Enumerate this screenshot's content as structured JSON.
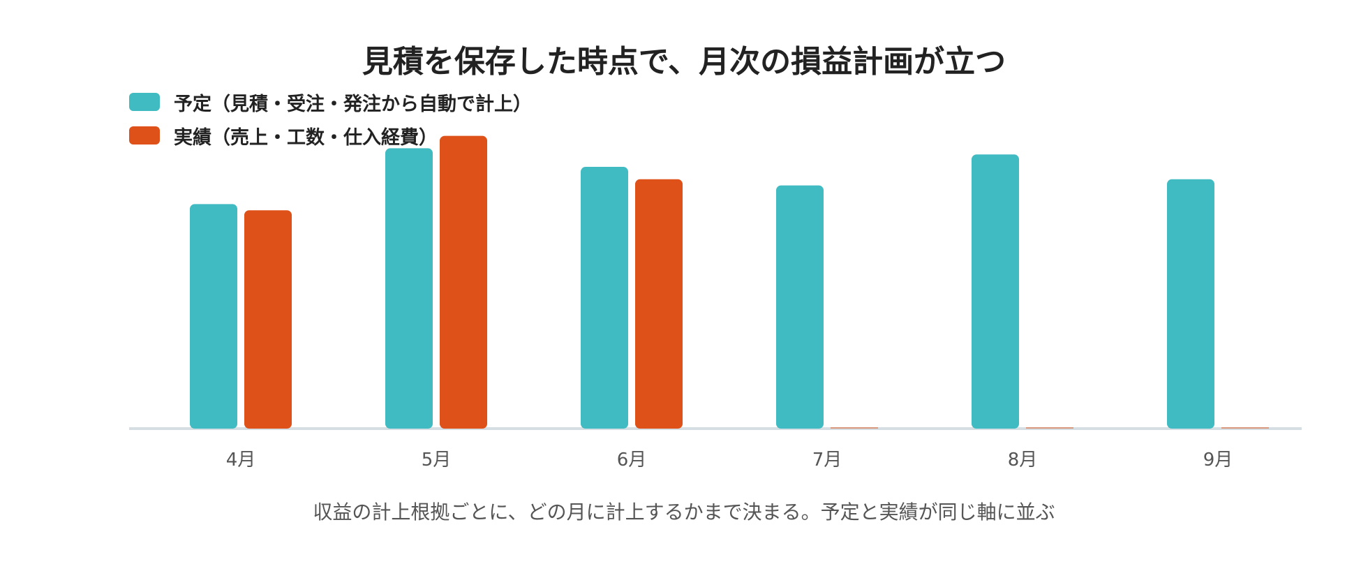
{
  "chart_data": {
    "type": "bar",
    "title": "見積を保存した時点で、月次の損益計画が立つ",
    "caption": "収益の計上根拠ごとに、どの月に計上するかまで決まる。予定と実績が同じ軸に並ぶ",
    "categories": [
      "4月",
      "5月",
      "6月",
      "7月",
      "8月",
      "9月"
    ],
    "series": [
      {
        "name": "予定（見積・受注・発注から自動で計上）",
        "color": "#40BBC1",
        "values": [
          72,
          90,
          84,
          78,
          88,
          80
        ]
      },
      {
        "name": "実績（売上・工数・仕入経費）",
        "color": "#DE5119",
        "values": [
          70,
          94,
          80,
          0,
          0,
          0
        ]
      }
    ],
    "ylim": [
      0,
      100
    ],
    "grid": false,
    "legend_position": "top-left",
    "axis_color": "#D5DEE3"
  }
}
